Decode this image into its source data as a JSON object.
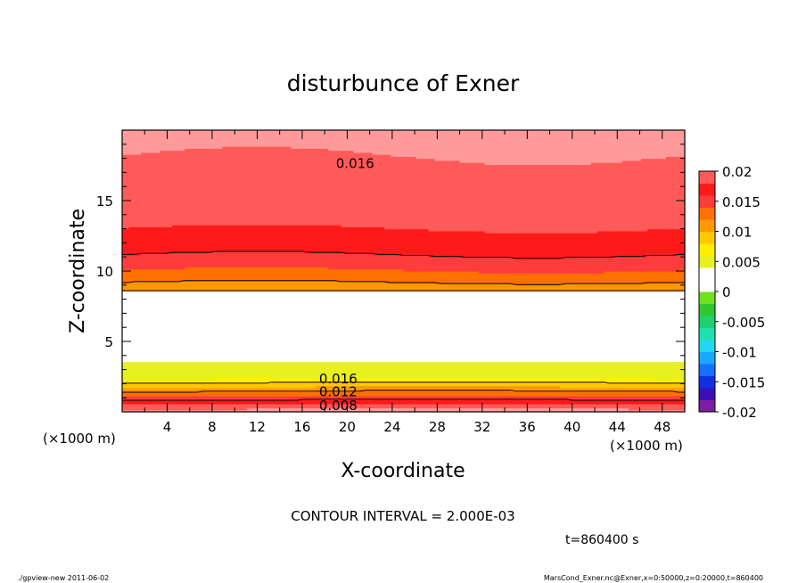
{
  "chart_data": {
    "type": "heatmap",
    "title": "disturbunce of Exner",
    "xlabel": "X-coordinate",
    "ylabel": "Z-coordinate",
    "x_unit_label": "(×1000 m)",
    "z_unit_label": "(×1000 m)",
    "xlim": [
      0,
      50
    ],
    "ylim": [
      0,
      20
    ],
    "x_ticks": [
      "4",
      "8",
      "12",
      "16",
      "20",
      "24",
      "28",
      "32",
      "36",
      "40",
      "44",
      "48"
    ],
    "y_ticks": [
      "5",
      "10",
      "15"
    ],
    "colorbar": {
      "ticks": [
        "0.02",
        "0.015",
        "0.01",
        "0.005",
        "0",
        "-0.005",
        "-0.01",
        "-0.015",
        "-0.02"
      ],
      "levels": [
        -0.02,
        -0.018,
        -0.016,
        -0.014,
        -0.012,
        -0.01,
        -0.008,
        -0.006,
        -0.004,
        -0.002,
        0,
        0.002,
        0.004,
        0.006,
        0.008,
        0.01,
        0.012,
        0.014,
        0.016,
        0.018,
        0.02
      ],
      "colors": [
        "#7a1fa2",
        "#3a0fb8",
        "#1030e0",
        "#1470ff",
        "#18a8ff",
        "#20d8f0",
        "#20e0b0",
        "#20d070",
        "#30c830",
        "#70e020",
        "#ffffff",
        "#ffffff",
        "#e8f020",
        "#ffee00",
        "#ffc800",
        "#ff9800",
        "#ff7000",
        "#ff3c3c",
        "#ff1a1a",
        "#ff5a5a",
        "#ff9a9a"
      ]
    },
    "contour_labels": [
      {
        "text": "0.016",
        "x": 19,
        "z": 17.7
      },
      {
        "text": "0.016",
        "x": 17.5,
        "z": 2.4
      },
      {
        "text": "0.012",
        "x": 17.5,
        "z": 1.5
      },
      {
        "text": "0.008",
        "x": 17.5,
        "z": 0.5
      }
    ],
    "annotations": {
      "contour_interval": "CONTOUR INTERVAL = 2.000E-03",
      "time": "t=860400 s",
      "footer_left": "./gpview-new  2011-06-02",
      "footer_right": "MarsCond_Exner.nc@Exner,x=0:50000,z=0:20000,t=860400"
    }
  }
}
